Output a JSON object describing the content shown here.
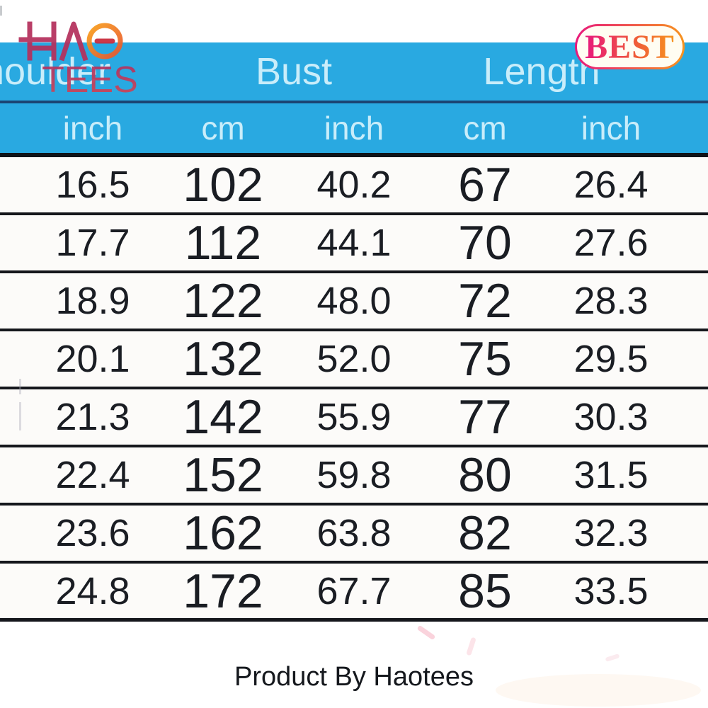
{
  "brand": {
    "logo_line1": "HAO",
    "logo_line2": "TEES",
    "badge_label": "BEST"
  },
  "size_chart": {
    "column_groups": [
      {
        "label": "Shoulder"
      },
      {
        "label": "Bust"
      },
      {
        "label": "Length"
      }
    ],
    "unit_headers": [
      "inch",
      "cm",
      "inch",
      "cm",
      "inch"
    ],
    "rows": [
      [
        "16.5",
        "102",
        "40.2",
        "67",
        "26.4"
      ],
      [
        "17.7",
        "112",
        "44.1",
        "70",
        "27.6"
      ],
      [
        "18.9",
        "122",
        "48.0",
        "72",
        "28.3"
      ],
      [
        "20.1",
        "132",
        "52.0",
        "75",
        "29.5"
      ],
      [
        "21.3",
        "142",
        "55.9",
        "77",
        "30.3"
      ],
      [
        "22.4",
        "152",
        "59.8",
        "80",
        "31.5"
      ],
      [
        "23.6",
        "162",
        "63.8",
        "82",
        "32.3"
      ],
      [
        "24.8",
        "172",
        "67.7",
        "85",
        "33.5"
      ]
    ]
  },
  "footer": {
    "credit": "Product By Haotees"
  },
  "colors": {
    "header_blue": "#29a9e1",
    "header_text": "#c9edfa",
    "navy_divider": "#1b4573",
    "row_divider": "#15171c",
    "logo_crimson": "#b4305c",
    "logo_orange": "#f6921e",
    "badge_gradient_start": "#e8187d",
    "badge_gradient_end": "#f7941e"
  }
}
